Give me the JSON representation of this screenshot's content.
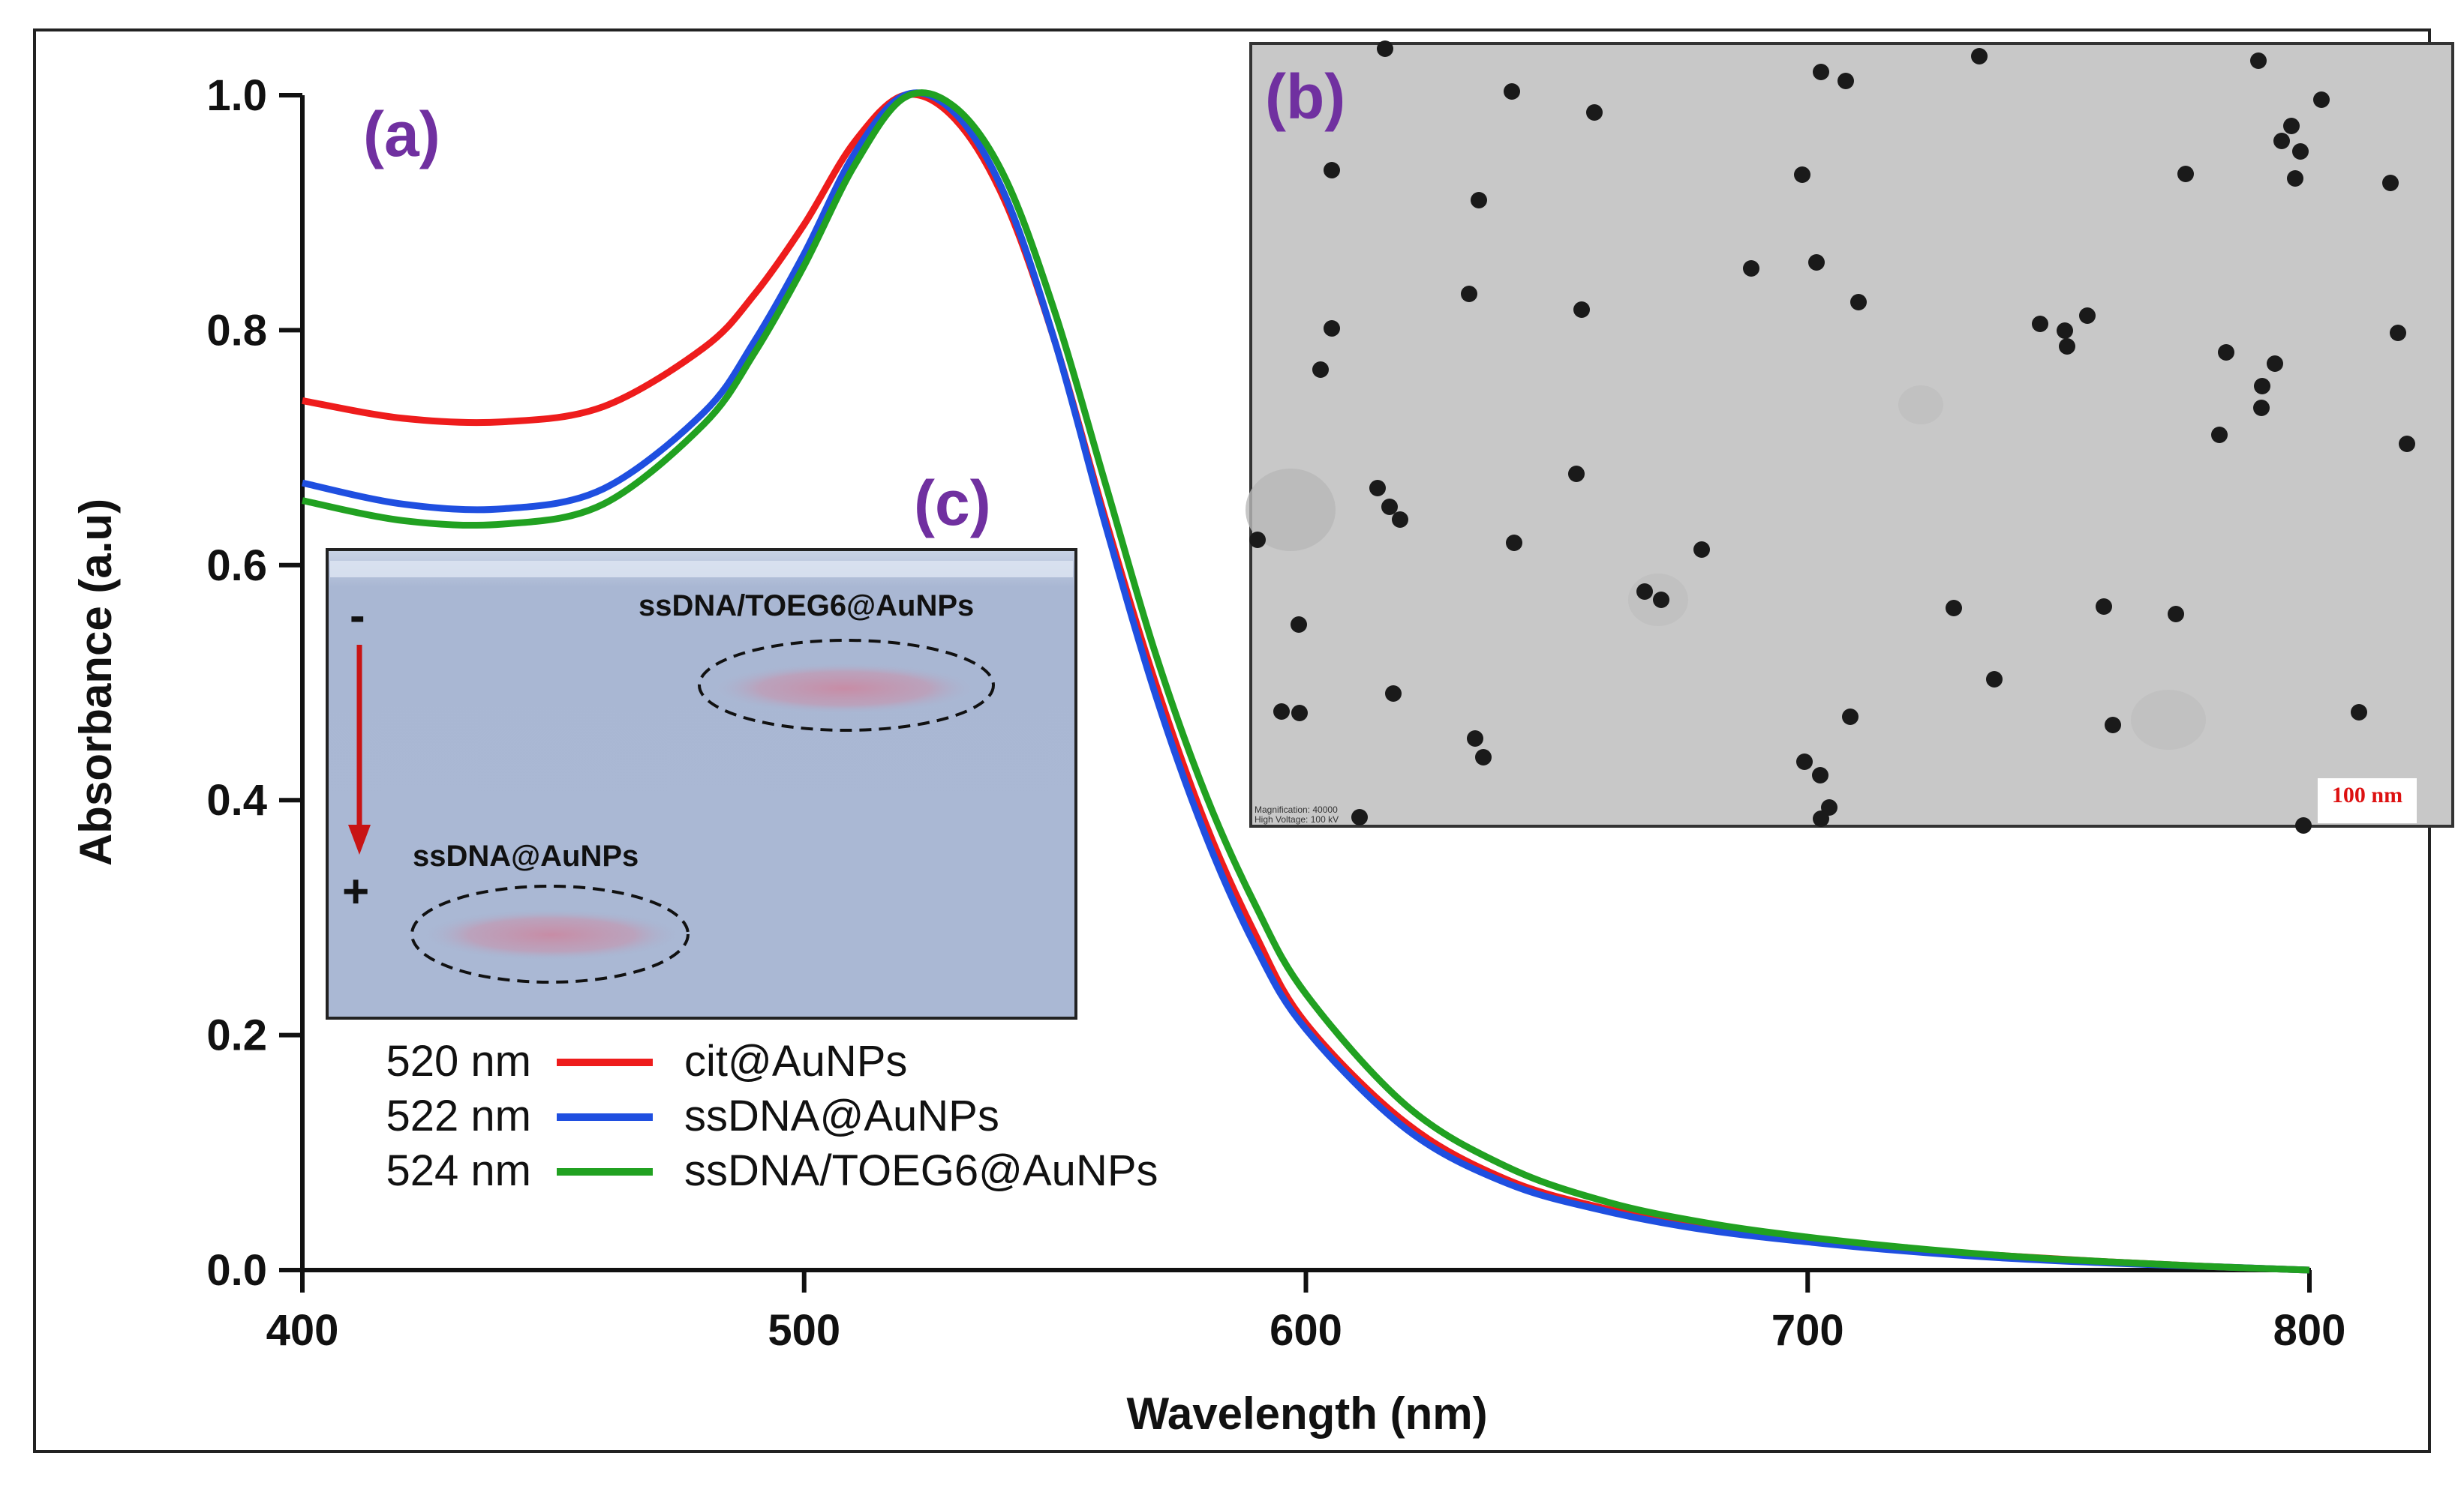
{
  "chart_data": {
    "type": "line",
    "xlabel": "Wavelength (nm)",
    "ylabel": "Absorbance (a.u)",
    "xlim": [
      400,
      800
    ],
    "ylim": [
      0.0,
      1.0
    ],
    "xticks": [
      "400",
      "500",
      "600",
      "700",
      "800"
    ],
    "yticks": [
      "0.0",
      "0.2",
      "0.4",
      "0.6",
      "0.8",
      "1.0"
    ],
    "grid": false,
    "series": [
      {
        "name": "cit@AuNPs",
        "peak_label": "520 nm",
        "color": "#ee1c1c",
        "x": [
          400,
          420,
          440,
          460,
          480,
          490,
          500,
          510,
          520,
          530,
          540,
          550,
          560,
          570,
          580,
          590,
          600,
          620,
          640,
          660,
          680,
          700,
          720,
          740,
          760,
          780,
          800
        ],
        "y": [
          0.74,
          0.725,
          0.722,
          0.735,
          0.785,
          0.83,
          0.89,
          0.96,
          1.0,
          0.98,
          0.91,
          0.79,
          0.64,
          0.5,
          0.38,
          0.285,
          0.21,
          0.125,
          0.077,
          0.052,
          0.036,
          0.026,
          0.018,
          0.012,
          0.007,
          0.003,
          0.0
        ]
      },
      {
        "name": "ssDNA@AuNPs",
        "peak_label": "522 nm",
        "color": "#1f4fe0",
        "x": [
          400,
          420,
          440,
          460,
          480,
          490,
          500,
          510,
          520,
          530,
          540,
          550,
          560,
          570,
          580,
          590,
          600,
          620,
          640,
          660,
          680,
          700,
          720,
          740,
          760,
          780,
          800
        ],
        "y": [
          0.67,
          0.652,
          0.648,
          0.665,
          0.73,
          0.79,
          0.865,
          0.95,
          1.0,
          0.985,
          0.915,
          0.79,
          0.635,
          0.49,
          0.37,
          0.275,
          0.205,
          0.12,
          0.074,
          0.05,
          0.034,
          0.024,
          0.016,
          0.01,
          0.006,
          0.003,
          0.0
        ]
      },
      {
        "name": "ssDNA/TOEG6@AuNPs",
        "peak_label": "524 nm",
        "color": "#21a121",
        "x": [
          400,
          420,
          440,
          460,
          480,
          490,
          500,
          510,
          520,
          530,
          540,
          550,
          560,
          570,
          580,
          590,
          600,
          620,
          640,
          660,
          680,
          700,
          720,
          740,
          760,
          780,
          800
        ],
        "y": [
          0.655,
          0.638,
          0.635,
          0.652,
          0.72,
          0.78,
          0.855,
          0.94,
          0.998,
          0.99,
          0.93,
          0.815,
          0.67,
          0.525,
          0.405,
          0.31,
          0.235,
          0.14,
          0.088,
          0.058,
          0.04,
          0.028,
          0.019,
          0.012,
          0.007,
          0.003,
          0.0
        ]
      }
    ]
  },
  "panels": {
    "a_label": "(a)",
    "b_label": "(b)",
    "c_label": "(c)"
  },
  "gel_inset": {
    "minus_sign": "-",
    "plus_sign": "+",
    "band_top_label": "ssDNA/TOEG6@AuNPs",
    "band_bottom_label": "ssDNA@AuNPs"
  },
  "tem_inset": {
    "scale_bar_label": "100 nm",
    "meta_line1": "Magnification: 40000",
    "meta_line2": "High Voltage: 100 kV"
  }
}
